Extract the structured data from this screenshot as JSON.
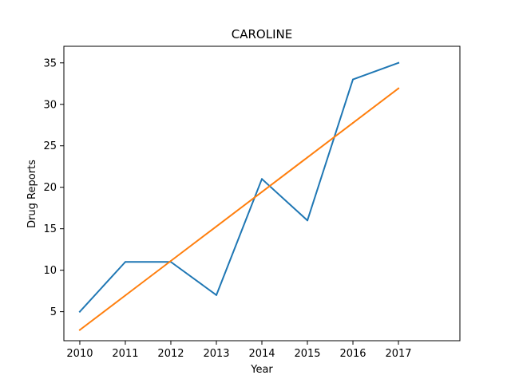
{
  "chart_data": {
    "type": "line",
    "title": "CAROLINE",
    "xlabel": "Year",
    "ylabel": "Drug Reports",
    "x": [
      2010,
      2011,
      2012,
      2013,
      2014,
      2015,
      2016,
      2017
    ],
    "xlim": [
      2009.65,
      2018.35
    ],
    "ylim": [
      1.5,
      37.0
    ],
    "xticks": [
      2010,
      2011,
      2012,
      2013,
      2014,
      2015,
      2016,
      2017
    ],
    "yticks": [
      5,
      10,
      15,
      20,
      25,
      30,
      35
    ],
    "grid": false,
    "series": [
      {
        "values": [
          5,
          11,
          11,
          7,
          21,
          16,
          33,
          35
        ],
        "color": "#1f77b4"
      },
      {
        "values": [
          2.8,
          6.96,
          11.12,
          15.28,
          19.44,
          23.6,
          27.76,
          31.92
        ],
        "color": "#ff7f0e"
      }
    ]
  }
}
